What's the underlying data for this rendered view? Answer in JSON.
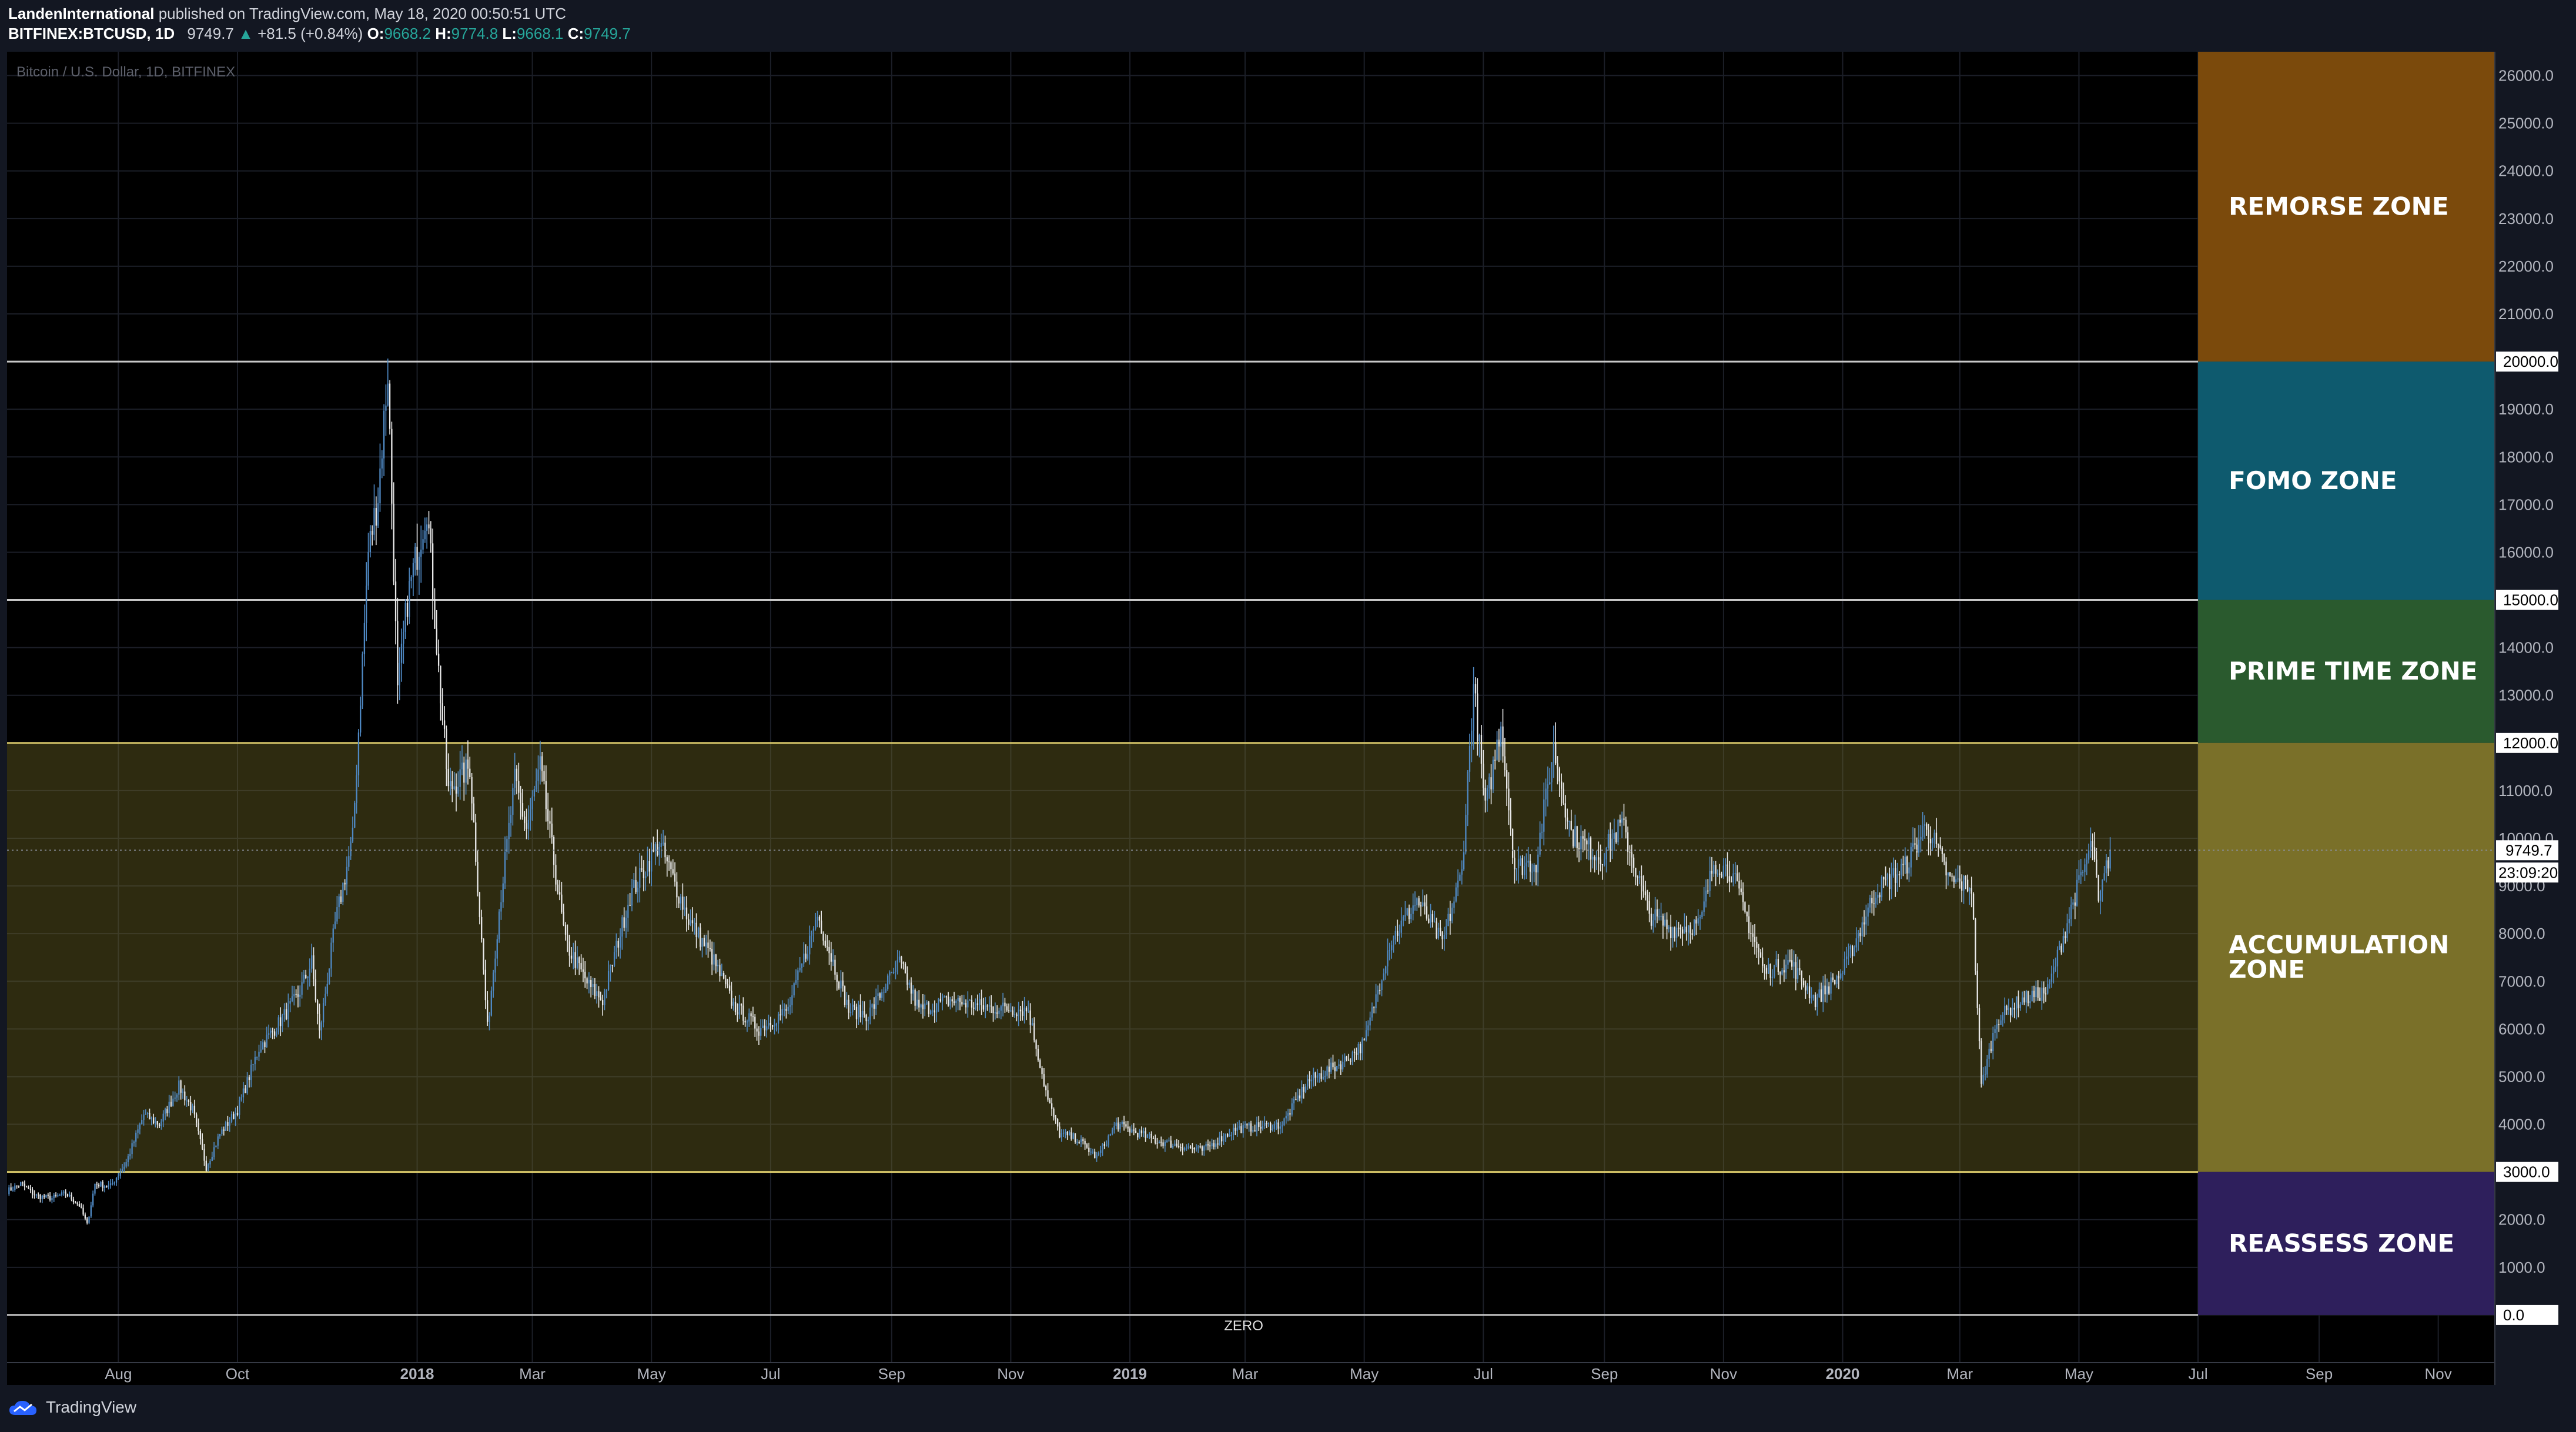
{
  "header": {
    "author": "LandenInternational",
    "published_text": "published on TradingView.com, May 18, 2020 00:50:51 UTC",
    "symbol": "BITFINEX:BTCUSD, 1D",
    "last": "9749.7",
    "change_arrow": "▲",
    "change": "+81.5 (+0.84%)",
    "o_label": "O:",
    "o_value": "9668.2",
    "h_label": "H:",
    "h_value": "9774.8",
    "l_label": "L:",
    "l_value": "9668.1",
    "c_label": "C:",
    "c_value": "9749.7"
  },
  "footer": {
    "brand": "TradingView"
  },
  "colors": {
    "background": "#000000",
    "panel": "#131722",
    "candle_up": "#4f89c4",
    "candle_down": "#e8e8e8",
    "remorse": "#7b4a0c",
    "fomo": "#0e5a6e",
    "prime": "#2a5a2e",
    "accumulation": "#7a7029",
    "reassess": "#2e1f5c"
  },
  "chart_data": {
    "type": "candlestick",
    "watermark": "Bitcoin / U.S. Dollar, 1D, BITFINEX",
    "ylim": [
      -1000,
      26500
    ],
    "y_ticks": [
      "26000.0",
      "25000.0",
      "24000.0",
      "23000.0",
      "22000.0",
      "21000.0",
      "19000.0",
      "18000.0",
      "17000.0",
      "16000.0",
      "14000.0",
      "13000.0",
      "11000.0",
      "10000.0",
      "9000.0",
      "8000.0",
      "7000.0",
      "6000.0",
      "5000.0",
      "4000.0",
      "2000.0",
      "1000.0"
    ],
    "y_tick_values": [
      26000,
      25000,
      24000,
      23000,
      22000,
      21000,
      19000,
      18000,
      17000,
      16000,
      14000,
      13000,
      11000,
      10000,
      9000,
      8000,
      7000,
      6000,
      5000,
      4000,
      2000,
      1000
    ],
    "level_labels": [
      {
        "value": 20000,
        "text": "20000.0"
      },
      {
        "value": 15000,
        "text": "15000.0"
      },
      {
        "value": 12000,
        "text": "12000.0"
      },
      {
        "value": 3000,
        "text": "3000.0"
      },
      {
        "value": 0,
        "text": "0.0"
      }
    ],
    "last_price": {
      "value": 9749.7,
      "text": "9749.7"
    },
    "countdown": "23:09:20",
    "x_ticks": [
      {
        "label": "Aug",
        "date": "2017-08-01"
      },
      {
        "label": "Oct",
        "date": "2017-10-01"
      },
      {
        "label": "2018",
        "date": "2018-01-01"
      },
      {
        "label": "Mar",
        "date": "2018-03-01"
      },
      {
        "label": "May",
        "date": "2018-05-01"
      },
      {
        "label": "Jul",
        "date": "2018-07-01"
      },
      {
        "label": "Sep",
        "date": "2018-09-01"
      },
      {
        "label": "Nov",
        "date": "2018-11-01"
      },
      {
        "label": "2019",
        "date": "2019-01-01"
      },
      {
        "label": "Mar",
        "date": "2019-03-01"
      },
      {
        "label": "May",
        "date": "2019-05-01"
      },
      {
        "label": "Jul",
        "date": "2019-07-01"
      },
      {
        "label": "Sep",
        "date": "2019-09-01"
      },
      {
        "label": "Nov",
        "date": "2019-11-01"
      },
      {
        "label": "2020",
        "date": "2020-01-01"
      },
      {
        "label": "Mar",
        "date": "2020-03-01"
      },
      {
        "label": "May",
        "date": "2020-05-01"
      },
      {
        "label": "Jul",
        "date": "2020-07-01"
      },
      {
        "label": "Sep",
        "date": "2020-09-01"
      },
      {
        "label": "Nov",
        "date": "2020-11-01"
      }
    ],
    "x_range": [
      "2017-06-05",
      "2020-11-30"
    ],
    "zone_end_date": "2020-07-01",
    "zones": [
      {
        "name": "REMORSE ZONE",
        "lines": [
          "REMORSE ZONE"
        ],
        "from": 20000,
        "to": 26500,
        "key": "remorse"
      },
      {
        "name": "FOMO ZONE",
        "lines": [
          "FOMO ZONE"
        ],
        "from": 15000,
        "to": 20000,
        "key": "fomo"
      },
      {
        "name": "PRIME TIME ZONE",
        "lines": [
          "PRIME TIME ZONE"
        ],
        "from": 12000,
        "to": 15000,
        "key": "prime"
      },
      {
        "name": "ACCUMULATION ZONE",
        "lines": [
          "ACCUMULATION",
          "ZONE"
        ],
        "from": 3000,
        "to": 12000,
        "key": "accumulation"
      },
      {
        "name": "REASSESS ZONE",
        "lines": [
          "REASSESS ZONE"
        ],
        "from": 0,
        "to": 3000,
        "key": "reassess"
      }
    ],
    "zero_label": "ZERO",
    "price_path": [
      [
        "2017-06-05",
        2600
      ],
      [
        "2017-06-12",
        2750
      ],
      [
        "2017-06-20",
        2500
      ],
      [
        "2017-06-28",
        2450
      ],
      [
        "2017-07-05",
        2550
      ],
      [
        "2017-07-12",
        2300
      ],
      [
        "2017-07-16",
        1900
      ],
      [
        "2017-07-20",
        2750
      ],
      [
        "2017-07-28",
        2700
      ],
      [
        "2017-08-05",
        3200
      ],
      [
        "2017-08-14",
        4200
      ],
      [
        "2017-08-22",
        4000
      ],
      [
        "2017-09-01",
        4800
      ],
      [
        "2017-09-08",
        4300
      ],
      [
        "2017-09-15",
        3100
      ],
      [
        "2017-09-22",
        3800
      ],
      [
        "2017-10-01",
        4300
      ],
      [
        "2017-10-12",
        5600
      ],
      [
        "2017-10-20",
        6000
      ],
      [
        "2017-11-01",
        6700
      ],
      [
        "2017-11-08",
        7400
      ],
      [
        "2017-11-12",
        5900
      ],
      [
        "2017-11-20",
        8200
      ],
      [
        "2017-11-29",
        10000
      ],
      [
        "2017-12-07",
        16000
      ],
      [
        "2017-12-12",
        17200
      ],
      [
        "2017-12-17",
        19800
      ],
      [
        "2017-12-22",
        13000
      ],
      [
        "2017-12-27",
        15000
      ],
      [
        "2018-01-06",
        17000
      ],
      [
        "2018-01-12",
        13500
      ],
      [
        "2018-01-17",
        11000
      ],
      [
        "2018-01-28",
        11500
      ],
      [
        "2018-02-06",
        6000
      ],
      [
        "2018-02-12",
        8500
      ],
      [
        "2018-02-20",
        11200
      ],
      [
        "2018-02-26",
        10200
      ],
      [
        "2018-03-05",
        11500
      ],
      [
        "2018-03-18",
        7800
      ],
      [
        "2018-03-30",
        6900
      ],
      [
        "2018-04-06",
        6600
      ],
      [
        "2018-04-20",
        8800
      ],
      [
        "2018-05-05",
        9900
      ],
      [
        "2018-05-20",
        8300
      ],
      [
        "2018-06-01",
        7500
      ],
      [
        "2018-06-12",
        6500
      ],
      [
        "2018-06-25",
        6000
      ],
      [
        "2018-07-10",
        6400
      ],
      [
        "2018-07-25",
        8400
      ],
      [
        "2018-08-10",
        6400
      ],
      [
        "2018-08-20",
        6300
      ],
      [
        "2018-09-05",
        7400
      ],
      [
        "2018-09-15",
        6400
      ],
      [
        "2018-10-01",
        6600
      ],
      [
        "2018-10-20",
        6450
      ],
      [
        "2018-11-10",
        6400
      ],
      [
        "2018-11-20",
        4500
      ],
      [
        "2018-11-26",
        3800
      ],
      [
        "2018-12-05",
        3700
      ],
      [
        "2018-12-15",
        3300
      ],
      [
        "2018-12-25",
        4000
      ],
      [
        "2019-01-15",
        3650
      ],
      [
        "2019-02-07",
        3450
      ],
      [
        "2019-02-24",
        3900
      ],
      [
        "2019-03-20",
        4000
      ],
      [
        "2019-04-02",
        4900
      ],
      [
        "2019-04-20",
        5300
      ],
      [
        "2019-05-01",
        5700
      ],
      [
        "2019-05-14",
        7800
      ],
      [
        "2019-05-28",
        8700
      ],
      [
        "2019-06-10",
        7800
      ],
      [
        "2019-06-20",
        9300
      ],
      [
        "2019-06-26",
        13200
      ],
      [
        "2019-07-02",
        10600
      ],
      [
        "2019-07-10",
        12400
      ],
      [
        "2019-07-17",
        9400
      ],
      [
        "2019-07-28",
        9500
      ],
      [
        "2019-08-06",
        11900
      ],
      [
        "2019-08-15",
        10100
      ],
      [
        "2019-08-30",
        9600
      ],
      [
        "2019-09-10",
        10300
      ],
      [
        "2019-09-24",
        8400
      ],
      [
        "2019-10-05",
        8100
      ],
      [
        "2019-10-20",
        8200
      ],
      [
        "2019-10-27",
        9500
      ],
      [
        "2019-11-05",
        9300
      ],
      [
        "2019-11-22",
        7200
      ],
      [
        "2019-12-05",
        7400
      ],
      [
        "2019-12-18",
        6600
      ],
      [
        "2020-01-01",
        7200
      ],
      [
        "2020-01-18",
        8900
      ],
      [
        "2020-02-02",
        9400
      ],
      [
        "2020-02-13",
        10300
      ],
      [
        "2020-02-25",
        9100
      ],
      [
        "2020-03-07",
        9000
      ],
      [
        "2020-03-12",
        4800
      ],
      [
        "2020-03-20",
        6200
      ],
      [
        "2020-04-01",
        6600
      ],
      [
        "2020-04-15",
        6800
      ],
      [
        "2020-04-29",
        8800
      ],
      [
        "2020-05-08",
        9900
      ],
      [
        "2020-05-11",
        8600
      ],
      [
        "2020-05-17",
        9750
      ]
    ]
  }
}
